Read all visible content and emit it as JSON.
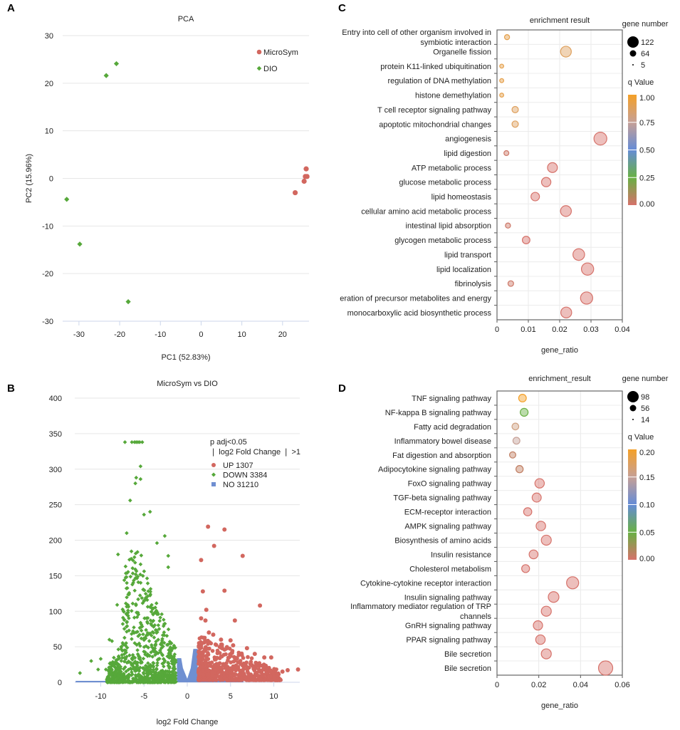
{
  "panels": {
    "A": "A",
    "B": "B",
    "C": "C",
    "D": "D"
  },
  "chart_data": [
    {
      "id": "A",
      "type": "scatter",
      "title": "PCA",
      "xlabel": "PC1 (52.83%)",
      "ylabel": "PC2 (15.96%)",
      "xlim": [
        -34,
        26.5
      ],
      "ylim": [
        -30,
        30
      ],
      "xticks": [
        -30,
        -20,
        -10,
        0,
        10,
        20
      ],
      "yticks": [
        -30,
        -20,
        -10,
        0,
        10,
        20,
        30
      ],
      "grid": "horizontal",
      "legend_position": "top-right",
      "series": [
        {
          "name": "MicroSym",
          "marker": "circle",
          "color": "#d2675f",
          "points": [
            [
              25.8,
              2.0
            ],
            [
              25.6,
              0.4
            ],
            [
              26.0,
              0.4
            ],
            [
              25.3,
              -0.6
            ],
            [
              23.1,
              -3.0
            ]
          ]
        },
        {
          "name": "DIO",
          "marker": "diamond",
          "color": "#56a83a",
          "points": [
            [
              -20.8,
              24.1
            ],
            [
              -23.3,
              21.6
            ],
            [
              -33.0,
              -4.4
            ],
            [
              -29.8,
              -13.8
            ],
            [
              -17.9,
              -25.9
            ]
          ]
        }
      ]
    },
    {
      "id": "B",
      "type": "scatter",
      "title": "MicroSym vs DIO",
      "xlabel": "log2 Fold Change",
      "ylabel": "",
      "xlim": [
        -13,
        13
      ],
      "ylim": [
        0,
        400
      ],
      "xticks": [
        -10,
        -5,
        0,
        5,
        10
      ],
      "yticks": [
        0,
        50,
        100,
        150,
        200,
        250,
        300,
        350,
        400
      ],
      "grid": "horizontal",
      "legend_title": [
        "p adj<0.05",
        "❘ log2 Fold Change ❘ >1"
      ],
      "legend_position": "top-right",
      "series": [
        {
          "name": "UP",
          "count": 1307,
          "label": "UP 1307",
          "marker": "circle",
          "color": "#d2675f",
          "highlight_points": [
            [
              2.4,
              219
            ],
            [
              4.3,
              215
            ],
            [
              3.1,
              192
            ],
            [
              6.4,
              178
            ],
            [
              1.6,
              172
            ],
            [
              1.8,
              128
            ],
            [
              4.3,
              129
            ],
            [
              8.4,
              108
            ],
            [
              2.2,
              102
            ],
            [
              5.5,
              87
            ],
            [
              1.6,
              90
            ],
            [
              2.1,
              87
            ],
            [
              2.5,
              70
            ],
            [
              3.0,
              67
            ],
            [
              3.9,
              60
            ],
            [
              5.0,
              59
            ],
            [
              4.0,
              53
            ],
            [
              5.3,
              52
            ],
            [
              6.9,
              48
            ],
            [
              7.8,
              40
            ],
            [
              8.9,
              35
            ],
            [
              9.7,
              35
            ],
            [
              11.6,
              17
            ],
            [
              12.8,
              18
            ],
            [
              11.0,
              15
            ],
            [
              10.4,
              10
            ],
            [
              10.1,
              5
            ]
          ],
          "bulk_region": {
            "x_range": [
              1.3,
              10.5
            ],
            "y_max_at_edges": [
              60,
              10
            ]
          }
        },
        {
          "name": "DOWN",
          "count": 3384,
          "label": "DOWN 3384",
          "marker": "diamond",
          "color": "#56a83a",
          "highlight_points": [
            [
              -7.2,
              338
            ],
            [
              -6.4,
              338
            ],
            [
              -6.1,
              338
            ],
            [
              -5.9,
              338
            ],
            [
              -5.7,
              338
            ],
            [
              -5.5,
              338
            ],
            [
              -5.2,
              338
            ],
            [
              -5.4,
              304
            ],
            [
              -5.9,
              288
            ],
            [
              -5.4,
              286
            ],
            [
              -6.0,
              280
            ],
            [
              -6.6,
              256
            ],
            [
              -4.3,
              240
            ],
            [
              -5.0,
              236
            ],
            [
              -2.6,
              206
            ],
            [
              -7.0,
              210
            ],
            [
              -3.5,
              196
            ],
            [
              -2.2,
              178
            ],
            [
              -8.0,
              180
            ],
            [
              -2.2,
              162
            ],
            [
              -8.1,
              109
            ],
            [
              -9.0,
              60
            ],
            [
              -8.7,
              58
            ],
            [
              -11.1,
              30
            ],
            [
              -10.0,
              33
            ],
            [
              -12.4,
              13
            ],
            [
              -10.3,
              18
            ],
            [
              -9.4,
              18
            ],
            [
              -8.9,
              27
            ]
          ],
          "bulk_region": {
            "x_range": [
              -9.5,
              -1.3
            ],
            "peak_x": -6.0
          }
        },
        {
          "name": "NO",
          "count": 31210,
          "label": "NO 31210",
          "marker": "square",
          "color": "#6f8fd1",
          "profile": [
            [
              -12.9,
              2
            ],
            [
              -12.3,
              2
            ],
            [
              -6.2,
              2
            ],
            [
              -6.2,
              4
            ],
            [
              -5.1,
              4
            ],
            [
              -5.1,
              2
            ],
            [
              -1.2,
              2
            ],
            [
              -1.2,
              34
            ],
            [
              -0.7,
              34
            ],
            [
              -0.5,
              20
            ],
            [
              0.0,
              5
            ],
            [
              0.4,
              20
            ],
            [
              0.7,
              47
            ],
            [
              1.2,
              47
            ],
            [
              1.2,
              4
            ],
            [
              6.5,
              4
            ],
            [
              6.5,
              1
            ]
          ]
        }
      ]
    },
    {
      "id": "C",
      "type": "scatter",
      "subtype": "bubble",
      "title": "enrichment result",
      "xlabel": "gene_ratio",
      "xlim": [
        0,
        0.04
      ],
      "xticks": [
        0,
        0.01,
        0.02,
        0.03,
        0.04
      ],
      "xtick_labels": [
        "0",
        "0.01",
        "0.02",
        "0.03",
        "0.04"
      ],
      "size_legend_title": "gene number",
      "size_legend": [
        122,
        64,
        5
      ],
      "color_legend_title": "q Value",
      "color_range": [
        0,
        1
      ],
      "color_ticks": [
        "1.00",
        "0.75",
        "0.50",
        "0.25",
        "0.00"
      ],
      "categories": [
        {
          "label": [
            "Entry into cell of other organism involved in",
            "symbiotic interaction"
          ],
          "gene_ratio": 0.0032,
          "count": 10,
          "q": 0.92
        },
        {
          "label": [
            "Organelle fission"
          ],
          "gene_ratio": 0.022,
          "count": 65,
          "q": 0.88
        },
        {
          "label": [
            "protein K11-linked ubiquitination"
          ],
          "gene_ratio": 0.0015,
          "count": 5,
          "q": 0.92
        },
        {
          "label": [
            "regulation of DNA methylation"
          ],
          "gene_ratio": 0.0015,
          "count": 5,
          "q": 0.92
        },
        {
          "label": [
            "histone demethylation"
          ],
          "gene_ratio": 0.0015,
          "count": 5,
          "q": 0.92
        },
        {
          "label": [
            "T cell receptor signaling pathway"
          ],
          "gene_ratio": 0.0058,
          "count": 18,
          "q": 0.88
        },
        {
          "label": [
            "apoptotic mitochondrial changes"
          ],
          "gene_ratio": 0.0058,
          "count": 18,
          "q": 0.88
        },
        {
          "label": [
            "angiogenesis"
          ],
          "gene_ratio": 0.033,
          "count": 97,
          "q": 0.0
        },
        {
          "label": [
            "lipid digestion"
          ],
          "gene_ratio": 0.003,
          "count": 9,
          "q": 0.02
        },
        {
          "label": [
            "ATP metabolic process"
          ],
          "gene_ratio": 0.0177,
          "count": 53,
          "q": 0.0
        },
        {
          "label": [
            "glucose metabolic process"
          ],
          "gene_ratio": 0.0157,
          "count": 47,
          "q": 0.0
        },
        {
          "label": [
            "lipid homeostasis"
          ],
          "gene_ratio": 0.0122,
          "count": 37,
          "q": 0.0
        },
        {
          "label": [
            "cellular amino acid metabolic process"
          ],
          "gene_ratio": 0.022,
          "count": 66,
          "q": 0.0
        },
        {
          "label": [
            "intestinal lipid absorption"
          ],
          "gene_ratio": 0.0035,
          "count": 10,
          "q": 0.02
        },
        {
          "label": [
            "glycogen metabolic process"
          ],
          "gene_ratio": 0.0093,
          "count": 28,
          "q": 0.0
        },
        {
          "label": [
            "lipid transport"
          ],
          "gene_ratio": 0.0261,
          "count": 78,
          "q": 0.0
        },
        {
          "label": [
            "lipid localization"
          ],
          "gene_ratio": 0.0289,
          "count": 87,
          "q": 0.0
        },
        {
          "label": [
            "fibrinolysis"
          ],
          "gene_ratio": 0.0044,
          "count": 13,
          "q": 0.02
        },
        {
          "label": [
            "eration of precursor metabolites and energy"
          ],
          "gene_ratio": 0.0286,
          "count": 86,
          "q": 0.0
        },
        {
          "label": [
            "monocarboxylic acid biosynthetic process"
          ],
          "gene_ratio": 0.0221,
          "count": 66,
          "q": 0.0
        }
      ]
    },
    {
      "id": "D",
      "type": "scatter",
      "subtype": "bubble",
      "title": "enrichment_result",
      "xlabel": "gene_ratio",
      "xlim": [
        0,
        0.06
      ],
      "xticks": [
        0,
        0.02,
        0.04,
        0.06
      ],
      "xtick_labels": [
        "0",
        "0.02",
        "0.04",
        "0.06"
      ],
      "size_legend_title": "gene number",
      "size_legend": [
        98,
        56,
        14
      ],
      "color_legend_title": "q Value",
      "color_range": [
        0,
        0.2
      ],
      "color_ticks": [
        "0.20",
        "0.15",
        "0.10",
        "0.05",
        "0.00"
      ],
      "categories": [
        {
          "label": [
            "TNF signaling pathway"
          ],
          "gene_ratio": 0.0122,
          "count": 23,
          "q": 0.2
        },
        {
          "label": [
            "NF-kappa B signaling pathway"
          ],
          "gene_ratio": 0.013,
          "count": 25,
          "q": 0.05
        },
        {
          "label": [
            "Fatty acid degradation"
          ],
          "gene_ratio": 0.0088,
          "count": 17,
          "q": 0.16
        },
        {
          "label": [
            "Inflammatory bowel disease"
          ],
          "gene_ratio": 0.0093,
          "count": 18,
          "q": 0.15
        },
        {
          "label": [
            "Fat digestion and absorption"
          ],
          "gene_ratio": 0.0075,
          "count": 14,
          "q": 0.01
        },
        {
          "label": [
            "Adipocytokine signaling pathway"
          ],
          "gene_ratio": 0.0108,
          "count": 20,
          "q": 0.01
        },
        {
          "label": [
            "FoxO signaling pathway"
          ],
          "gene_ratio": 0.0204,
          "count": 38,
          "q": 0.0
        },
        {
          "label": [
            "TGF-beta signaling pathway"
          ],
          "gene_ratio": 0.019,
          "count": 35,
          "q": 0.0
        },
        {
          "label": [
            "ECM-receptor interaction"
          ],
          "gene_ratio": 0.0147,
          "count": 27,
          "q": 0.0
        },
        {
          "label": [
            "AMPK signaling pathway"
          ],
          "gene_ratio": 0.021,
          "count": 39,
          "q": 0.0
        },
        {
          "label": [
            "Biosynthesis of amino acids"
          ],
          "gene_ratio": 0.0236,
          "count": 44,
          "q": 0.0
        },
        {
          "label": [
            "Insulin resistance"
          ],
          "gene_ratio": 0.0175,
          "count": 33,
          "q": 0.0
        },
        {
          "label": [
            "Cholesterol metabolism"
          ],
          "gene_ratio": 0.0137,
          "count": 25,
          "q": 0.0
        },
        {
          "label": [
            "Cytokine-cytokine receptor interaction"
          ],
          "gene_ratio": 0.0362,
          "count": 68,
          "q": 0.0
        },
        {
          "label": [
            "Insulin signaling pathway"
          ],
          "gene_ratio": 0.0271,
          "count": 51,
          "q": 0.0
        },
        {
          "label": [
            "Inflammatory mediator regulation of TRP",
            "channels"
          ],
          "gene_ratio": 0.0236,
          "count": 44,
          "q": 0.0
        },
        {
          "label": [
            "GnRH signaling pathway"
          ],
          "gene_ratio": 0.0196,
          "count": 37,
          "q": 0.0
        },
        {
          "label": [
            "PPAR signaling pathway"
          ],
          "gene_ratio": 0.0208,
          "count": 39,
          "q": 0.0
        },
        {
          "label": [
            "Bile secretion"
          ],
          "gene_ratio": 0.0236,
          "count": 44,
          "q": 0.0
        },
        {
          "label": [
            "Bile secretion"
          ],
          "gene_ratio": 0.052,
          "count": 98,
          "q": 0.0
        }
      ]
    }
  ]
}
